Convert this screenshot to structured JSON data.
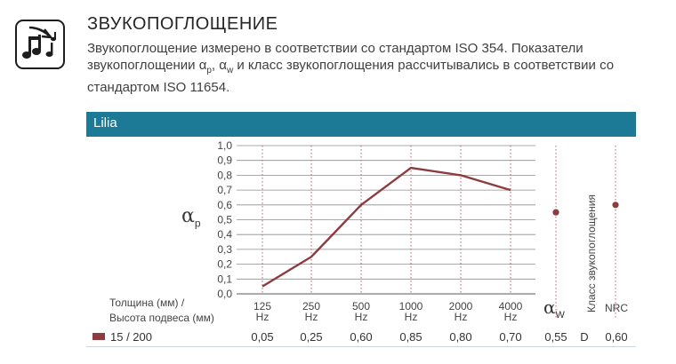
{
  "header": {
    "icon": "music-notes-icon",
    "title": "ЗВУКОПОГЛОЩЕНИЕ",
    "desc_line1": "Звукопоглощение измерено в соответствии со стандартом ISO 354. Показатели",
    "desc_line2_a": "звукопоглощении ",
    "desc_alpha_p": "α",
    "desc_sub_p": "p",
    "desc_comma": ", ",
    "desc_alpha_w": "α",
    "desc_sub_w": "w",
    "desc_line2_b": " и класс звукопоглощения рассчитывались в соответствии со",
    "desc_line3": "стандартом ISO 11654."
  },
  "panel": {
    "title": "Lilia",
    "bar_color": "#1d7a97"
  },
  "table": {
    "thickness_header_line1": "Толщина (мм) /",
    "thickness_header_line2": "Высота подвеса (мм)",
    "aw_symbol": "α",
    "aw_sub": "W",
    "class_header": "Класс звукопоглощения",
    "nrc_header": "NRC",
    "row": {
      "name": "15 / 200",
      "values": [
        "0,05",
        "0,25",
        "0,60",
        "0,85",
        "0,80",
        "0,70"
      ],
      "aw": "0,55",
      "class": "D",
      "nrc": "0,60"
    }
  },
  "chart_data": {
    "type": "line",
    "ylabel_symbol": "α",
    "ylabel_sub": "p",
    "ylim": [
      0,
      1.0
    ],
    "y_ticks": [
      "0,0",
      "0,1",
      "0,2",
      "0,3",
      "0,4",
      "0,5",
      "0,6",
      "0,7",
      "0,8",
      "0,9",
      "1,0"
    ],
    "categories": [
      "125",
      "250",
      "500",
      "1000",
      "2000",
      "4000"
    ],
    "category_unit": "Hz",
    "grid": true,
    "series": [
      {
        "name": "15 / 200",
        "values": [
          0.05,
          0.25,
          0.6,
          0.85,
          0.8,
          0.7
        ],
        "color": "#8d3b3f"
      }
    ],
    "single_indices": {
      "aw_value": 0.55,
      "nrc_value": 0.6,
      "dot_color": "#8d3b3f"
    }
  }
}
